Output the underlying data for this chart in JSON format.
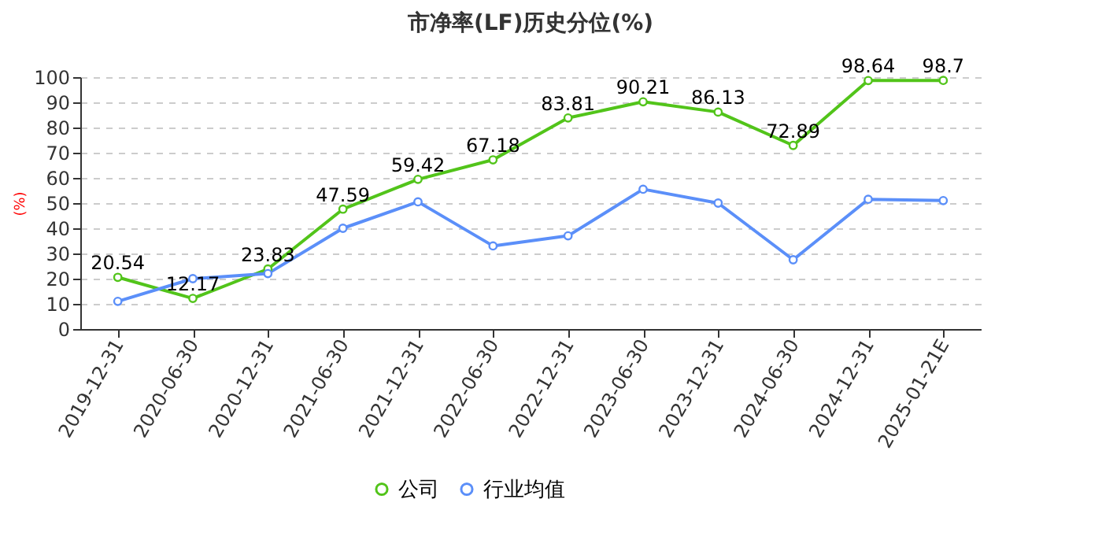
{
  "chart_data": {
    "type": "line",
    "title": "市净率(LF)历史分位(%)",
    "ylabel": "(%)",
    "categories": [
      "2019-12-31",
      "2020-06-30",
      "2020-12-31",
      "2021-06-30",
      "2021-12-31",
      "2022-06-30",
      "2022-12-31",
      "2023-06-30",
      "2023-12-31",
      "2024-06-30",
      "2024-12-31",
      "2025-01-21E"
    ],
    "series": [
      {
        "name": "公司",
        "color": "#52c41a",
        "values": [
          20.54,
          12.17,
          23.83,
          47.59,
          59.42,
          67.18,
          83.81,
          90.21,
          86.13,
          72.89,
          98.64,
          98.7
        ],
        "value_labels": [
          "20.54",
          "12.17",
          "23.83",
          "47.59",
          "59.42",
          "67.18",
          "83.81",
          "90.21",
          "86.13",
          "72.89",
          "98.64",
          "98.7"
        ]
      },
      {
        "name": "行业均值",
        "color": "#5b8ff9",
        "values": [
          11,
          20,
          22,
          40,
          50.5,
          33,
          37,
          55.5,
          50,
          27.5,
          51.5,
          51
        ]
      }
    ],
    "ylim": [
      0,
      100
    ],
    "yticks": [
      0,
      10,
      20,
      30,
      40,
      50,
      60,
      70,
      80,
      90,
      100
    ],
    "grid": "y",
    "legend": "bottom",
    "marker": "circle",
    "line_style": "solid"
  }
}
